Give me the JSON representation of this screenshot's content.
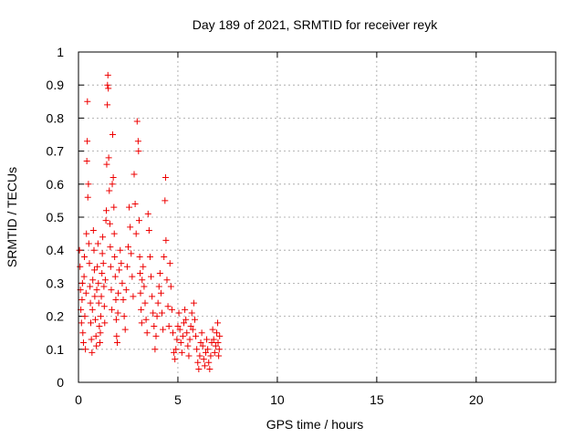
{
  "chart_data": {
    "type": "scatter",
    "title": "Day 189 of 2021, SRMTID for receiver reyk",
    "xlabel": "GPS time / hours",
    "ylabel": "SRMTID / TECUs",
    "xlim": [
      0,
      24
    ],
    "ylim": [
      0,
      1
    ],
    "xticks": [
      0,
      5,
      10,
      15,
      20
    ],
    "yticks": [
      0,
      0.1,
      0.2,
      0.3,
      0.4,
      0.5,
      0.6,
      0.7,
      0.8,
      0.9,
      1
    ],
    "xtick_labels": [
      "0",
      "5",
      "10",
      "15",
      "20"
    ],
    "ytick_labels": [
      "0",
      "0.1",
      "0.2",
      "0.3",
      "0.4",
      "0.5",
      "0.6",
      "0.7",
      "0.8",
      "0.9",
      "1"
    ],
    "grid": true,
    "marker": "+",
    "color": "#ee0000",
    "series": [
      {
        "name": "SRMTID",
        "points": [
          [
            0.05,
            0.4
          ],
          [
            0.08,
            0.35
          ],
          [
            0.1,
            0.28
          ],
          [
            0.12,
            0.22
          ],
          [
            0.15,
            0.18
          ],
          [
            0.18,
            0.25
          ],
          [
            0.2,
            0.3
          ],
          [
            0.22,
            0.15
          ],
          [
            0.25,
            0.12
          ],
          [
            0.28,
            0.32
          ],
          [
            0.3,
            0.38
          ],
          [
            0.32,
            0.2
          ],
          [
            0.35,
            0.1
          ],
          [
            0.38,
            0.27
          ],
          [
            0.4,
            0.45
          ],
          [
            0.42,
            0.67
          ],
          [
            0.44,
            0.73
          ],
          [
            0.45,
            0.85
          ],
          [
            0.47,
            0.56
          ],
          [
            0.5,
            0.6
          ],
          [
            0.52,
            0.42
          ],
          [
            0.55,
            0.36
          ],
          [
            0.58,
            0.29
          ],
          [
            0.6,
            0.24
          ],
          [
            0.62,
            0.18
          ],
          [
            0.65,
            0.13
          ],
          [
            0.68,
            0.09
          ],
          [
            0.7,
            0.22
          ],
          [
            0.72,
            0.31
          ],
          [
            0.75,
            0.46
          ],
          [
            0.78,
            0.4
          ],
          [
            0.8,
            0.34
          ],
          [
            0.82,
            0.26
          ],
          [
            0.85,
            0.19
          ],
          [
            0.88,
            0.14
          ],
          [
            0.9,
            0.11
          ],
          [
            0.92,
            0.28
          ],
          [
            0.95,
            0.35
          ],
          [
            0.98,
            0.42
          ],
          [
            1.0,
            0.3
          ],
          [
            1.02,
            0.24
          ],
          [
            1.05,
            0.17
          ],
          [
            1.08,
            0.12
          ],
          [
            1.1,
            0.15
          ],
          [
            1.12,
            0.2
          ],
          [
            1.15,
            0.26
          ],
          [
            1.18,
            0.33
          ],
          [
            1.2,
            0.39
          ],
          [
            1.22,
            0.44
          ],
          [
            1.25,
            0.36
          ],
          [
            1.28,
            0.29
          ],
          [
            1.3,
            0.23
          ],
          [
            1.32,
            0.18
          ],
          [
            1.35,
            0.31
          ],
          [
            1.38,
            0.49
          ],
          [
            1.4,
            0.52
          ],
          [
            1.42,
            0.66
          ],
          [
            1.45,
            0.84
          ],
          [
            1.46,
            0.9
          ],
          [
            1.48,
            0.93
          ],
          [
            1.5,
            0.89
          ],
          [
            1.52,
            0.68
          ],
          [
            1.55,
            0.58
          ],
          [
            1.58,
            0.48
          ],
          [
            1.6,
            0.41
          ],
          [
            1.62,
            0.35
          ],
          [
            1.65,
            0.28
          ],
          [
            1.68,
            0.22
          ],
          [
            1.7,
            0.6
          ],
          [
            1.72,
            0.75
          ],
          [
            1.75,
            0.62
          ],
          [
            1.78,
            0.53
          ],
          [
            1.8,
            0.45
          ],
          [
            1.82,
            0.38
          ],
          [
            1.85,
            0.32
          ],
          [
            1.88,
            0.25
          ],
          [
            1.9,
            0.19
          ],
          [
            1.92,
            0.14
          ],
          [
            1.95,
            0.12
          ],
          [
            1.98,
            0.21
          ],
          [
            2.0,
            0.27
          ],
          [
            2.05,
            0.34
          ],
          [
            2.1,
            0.4
          ],
          [
            2.15,
            0.36
          ],
          [
            2.2,
            0.3
          ],
          [
            2.25,
            0.25
          ],
          [
            2.3,
            0.2
          ],
          [
            2.35,
            0.16
          ],
          [
            2.4,
            0.28
          ],
          [
            2.45,
            0.35
          ],
          [
            2.5,
            0.41
          ],
          [
            2.55,
            0.53
          ],
          [
            2.6,
            0.47
          ],
          [
            2.65,
            0.39
          ],
          [
            2.7,
            0.32
          ],
          [
            2.75,
            0.26
          ],
          [
            2.8,
            0.63
          ],
          [
            2.85,
            0.54
          ],
          [
            2.9,
            0.45
          ],
          [
            2.95,
            0.79
          ],
          [
            3.0,
            0.73
          ],
          [
            3.02,
            0.7
          ],
          [
            3.05,
            0.49
          ],
          [
            3.08,
            0.38
          ],
          [
            3.1,
            0.33
          ],
          [
            3.12,
            0.27
          ],
          [
            3.15,
            0.22
          ],
          [
            3.18,
            0.18
          ],
          [
            3.2,
            0.31
          ],
          [
            3.25,
            0.35
          ],
          [
            3.3,
            0.29
          ],
          [
            3.35,
            0.24
          ],
          [
            3.4,
            0.19
          ],
          [
            3.45,
            0.15
          ],
          [
            3.5,
            0.51
          ],
          [
            3.55,
            0.46
          ],
          [
            3.6,
            0.38
          ],
          [
            3.65,
            0.32
          ],
          [
            3.7,
            0.26
          ],
          [
            3.75,
            0.21
          ],
          [
            3.8,
            0.17
          ],
          [
            3.85,
            0.1
          ],
          [
            3.9,
            0.14
          ],
          [
            3.95,
            0.2
          ],
          [
            4.0,
            0.24
          ],
          [
            4.05,
            0.29
          ],
          [
            4.1,
            0.33
          ],
          [
            4.15,
            0.27
          ],
          [
            4.2,
            0.21
          ],
          [
            4.25,
            0.16
          ],
          [
            4.3,
            0.38
          ],
          [
            4.35,
            0.55
          ],
          [
            4.38,
            0.62
          ],
          [
            4.4,
            0.43
          ],
          [
            4.45,
            0.31
          ],
          [
            4.5,
            0.23
          ],
          [
            4.55,
            0.17
          ],
          [
            4.6,
            0.36
          ],
          [
            4.65,
            0.29
          ],
          [
            4.7,
            0.22
          ],
          [
            4.75,
            0.15
          ],
          [
            4.8,
            0.09
          ],
          [
            4.85,
            0.07
          ],
          [
            4.9,
            0.1
          ],
          [
            4.95,
            0.13
          ],
          [
            5.0,
            0.17
          ],
          [
            5.05,
            0.21
          ],
          [
            5.1,
            0.16
          ],
          [
            5.15,
            0.12
          ],
          [
            5.2,
            0.09
          ],
          [
            5.25,
            0.14
          ],
          [
            5.3,
            0.18
          ],
          [
            5.35,
            0.22
          ],
          [
            5.4,
            0.19
          ],
          [
            5.45,
            0.15
          ],
          [
            5.5,
            0.11
          ],
          [
            5.55,
            0.08
          ],
          [
            5.6,
            0.13
          ],
          [
            5.65,
            0.17
          ],
          [
            5.7,
            0.21
          ],
          [
            5.75,
            0.16
          ],
          [
            5.8,
            0.24
          ],
          [
            5.85,
            0.19
          ],
          [
            5.9,
            0.14
          ],
          [
            5.95,
            0.1
          ],
          [
            6.0,
            0.06
          ],
          [
            6.05,
            0.04
          ],
          [
            6.1,
            0.08
          ],
          [
            6.15,
            0.12
          ],
          [
            6.2,
            0.15
          ],
          [
            6.25,
            0.11
          ],
          [
            6.3,
            0.07
          ],
          [
            6.35,
            0.05
          ],
          [
            6.4,
            0.09
          ],
          [
            6.45,
            0.13
          ],
          [
            6.5,
            0.1
          ],
          [
            6.55,
            0.06
          ],
          [
            6.6,
            0.04
          ],
          [
            6.65,
            0.08
          ],
          [
            6.7,
            0.12
          ],
          [
            6.75,
            0.16
          ],
          [
            6.8,
            0.13
          ],
          [
            6.85,
            0.09
          ],
          [
            6.9,
            0.11
          ],
          [
            6.95,
            0.15
          ],
          [
            7.0,
            0.18
          ],
          [
            7.02,
            0.12
          ],
          [
            7.05,
            0.08
          ],
          [
            7.08,
            0.1
          ],
          [
            7.1,
            0.14
          ]
        ]
      }
    ]
  }
}
